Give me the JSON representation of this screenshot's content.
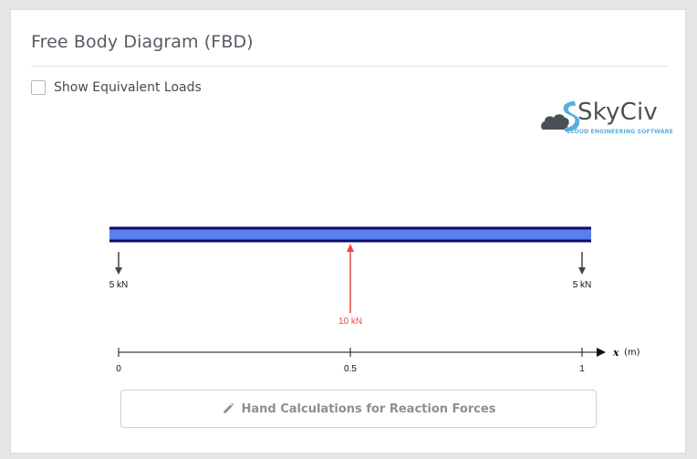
{
  "panel": {
    "title": "Free Body Diagram (FBD)",
    "show_equivalent_loads_label": "Show Equivalent Loads",
    "show_equivalent_loads_checked": false
  },
  "logo": {
    "name": "SkyCiv",
    "tagline": "CLOUD ENGINEERING SOFTWARE"
  },
  "fbd": {
    "beam_length": 1,
    "colors": {
      "beam_fill": "#5b7fee",
      "beam_edge": "#0d0d66",
      "reaction": "#444444",
      "applied_load": "#ee4444"
    },
    "loads": [
      {
        "position": 0,
        "value": 5,
        "unit": "kN",
        "direction": "down",
        "label": "5 kN",
        "kind": "reaction"
      },
      {
        "position": 0.5,
        "value": 10,
        "unit": "kN",
        "direction": "up",
        "label": "10 kN",
        "kind": "applied"
      },
      {
        "position": 1,
        "value": 5,
        "unit": "kN",
        "direction": "down",
        "label": "5 kN",
        "kind": "reaction"
      }
    ],
    "axis": {
      "variable": "x",
      "unit": "(m)",
      "ticks": [
        "0",
        "0.5",
        "1"
      ]
    }
  },
  "button": {
    "label": "Hand Calculations for Reaction Forces",
    "icon": "pencil-icon"
  }
}
